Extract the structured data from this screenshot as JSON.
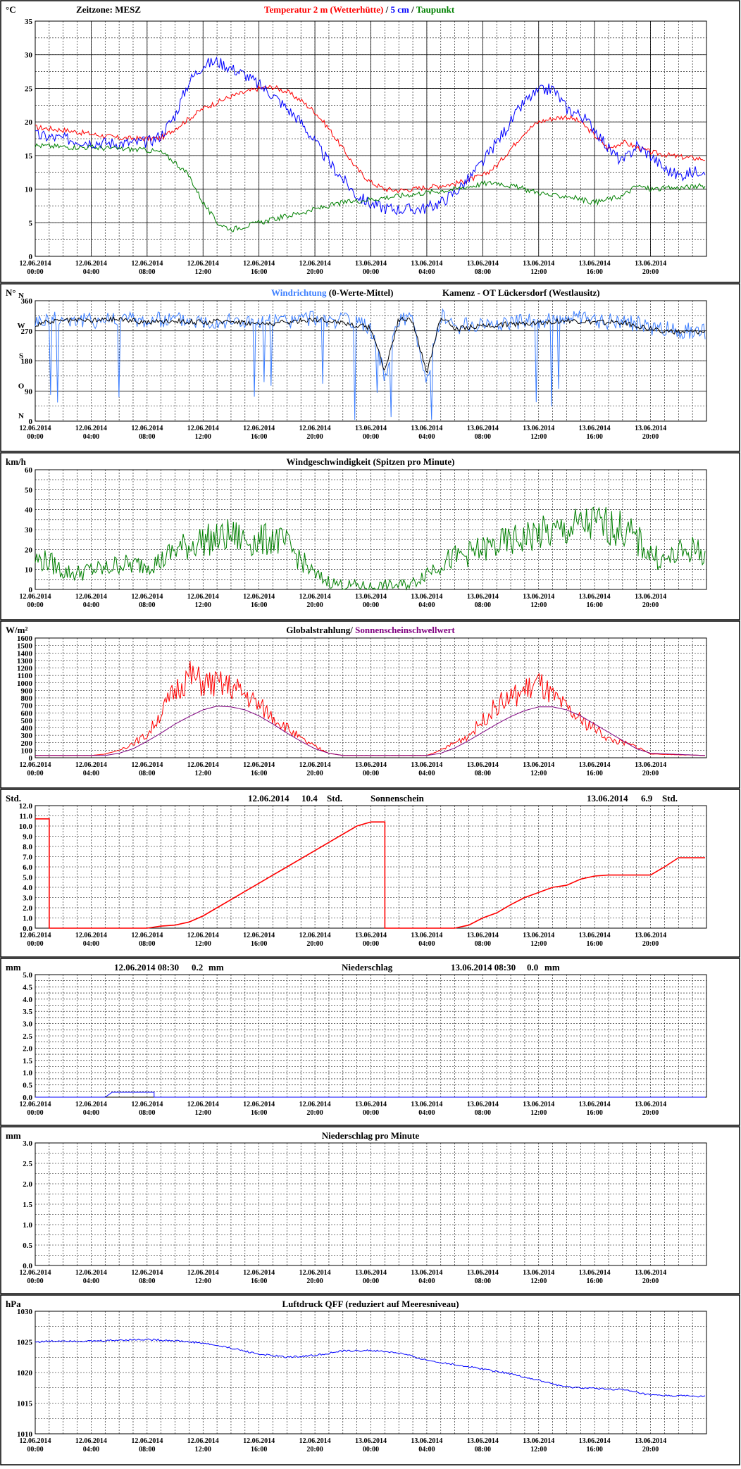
{
  "x_labels": [
    {
      "date": "12.06.2014",
      "time": "00:00"
    },
    {
      "date": "12.06.2014",
      "time": "04:00"
    },
    {
      "date": "12.06.2014",
      "time": "08:00"
    },
    {
      "date": "12.06.2014",
      "time": "12:00"
    },
    {
      "date": "12.06.2014",
      "time": "16:00"
    },
    {
      "date": "12.06.2014",
      "time": "20:00"
    },
    {
      "date": "13.06.2014",
      "time": "00:00"
    },
    {
      "date": "13.06.2014",
      "time": "04:00"
    },
    {
      "date": "13.06.2014",
      "time": "08:00"
    },
    {
      "date": "13.06.2014",
      "time": "12:00"
    },
    {
      "date": "13.06.2014",
      "time": "16:00"
    },
    {
      "date": "13.06.2014",
      "time": "20:00"
    }
  ],
  "colors": {
    "red": "#ff0000",
    "blue": "#0000ff",
    "green": "#008000",
    "black": "#000000",
    "purple": "#800080",
    "lightblue": "#3d7fff"
  },
  "chart_data": [
    {
      "id": "temp",
      "type": "line",
      "unit": "°C",
      "header": {
        "zone": "Zeitzone: MESZ",
        "t2m": "Temperatur 2 m (Wetterhütte)",
        "sep": "/",
        "t5": "5 cm",
        "sep2": "/",
        "dew": "Taupunkt"
      },
      "ylim": [
        0,
        35
      ],
      "yticks": [
        0,
        5,
        10,
        15,
        20,
        25,
        30,
        35
      ],
      "series": [
        {
          "name": "Temperatur 2 m (Wetterhütte)",
          "color": "#ff0000",
          "x": [
            0,
            2,
            4,
            6,
            8,
            9,
            10,
            11,
            12,
            14,
            16,
            17,
            18,
            19,
            20,
            21,
            22,
            23,
            24,
            25,
            26,
            27,
            28,
            30,
            32,
            33,
            34,
            35,
            36,
            37,
            38,
            39,
            40,
            41,
            42,
            44,
            46,
            47.9
          ],
          "y": [
            19.2,
            18.8,
            18.2,
            17.6,
            17.5,
            17.6,
            19,
            20.5,
            22,
            23.8,
            25,
            25.2,
            24.5,
            23.2,
            21.5,
            19,
            16,
            13,
            11,
            10,
            9.8,
            10,
            10.3,
            10.8,
            12,
            13.5,
            16,
            18.5,
            20,
            20.5,
            20.8,
            20,
            18,
            16,
            17,
            15.5,
            14.8,
            14.5
          ]
        },
        {
          "name": "5 cm",
          "color": "#0000ff",
          "x": [
            0,
            2,
            4,
            6,
            8,
            9,
            10,
            11,
            12,
            13,
            14,
            15,
            16,
            17,
            18,
            19,
            20,
            21,
            22,
            23,
            24,
            25,
            26,
            27,
            28,
            29,
            30,
            31,
            32,
            33,
            34,
            35,
            36,
            37,
            38,
            39,
            40,
            41,
            42,
            43,
            44,
            45,
            46,
            47,
            47.9
          ],
          "y": [
            18,
            17.5,
            17,
            16.8,
            17,
            18,
            21,
            26,
            28.5,
            29,
            28,
            27,
            25.5,
            24,
            22,
            20,
            17,
            14,
            11.5,
            9,
            7.8,
            7.2,
            7,
            7,
            7.2,
            8,
            9.5,
            11.5,
            14,
            17,
            20,
            23,
            24.5,
            25,
            22,
            21,
            19,
            16,
            14,
            16.5,
            15,
            13,
            12,
            12.5,
            13
          ]
        },
        {
          "name": "Taupunkt",
          "color": "#008000",
          "x": [
            0,
            2,
            4,
            6,
            8,
            9,
            10,
            11,
            12,
            13,
            14,
            15,
            16,
            18,
            20,
            22,
            24,
            26,
            28,
            30,
            32,
            33,
            34,
            35,
            36,
            37,
            38,
            39,
            40,
            41,
            42,
            43,
            44,
            46,
            47.9
          ],
          "y": [
            16.5,
            16.3,
            16.2,
            16,
            15.8,
            15.5,
            14,
            12,
            8,
            5,
            4,
            4.5,
            5,
            6,
            7,
            8,
            8.5,
            9,
            9.5,
            10,
            10.8,
            11,
            10.5,
            10,
            9.5,
            9,
            9,
            8.5,
            8,
            8.5,
            9,
            10.5,
            10,
            10.2,
            10.5
          ]
        }
      ]
    },
    {
      "id": "wdir",
      "type": "line",
      "unit": "N°",
      "header": {
        "title": "Windrichtung",
        "title2": "(0-Werte-Mittel)",
        "station": "Kamenz - OT Lückersdorf (Westlausitz)"
      },
      "ylim": [
        0,
        360
      ],
      "yticks": [
        0,
        90,
        180,
        270,
        360
      ],
      "compass": [
        "N",
        "O",
        "S",
        "W",
        "N"
      ],
      "series": [
        {
          "name": "Windrichtung",
          "color": "#3d7fff",
          "x": [
            0,
            2,
            4,
            6,
            8,
            10,
            12,
            14,
            16,
            18,
            20,
            22,
            23,
            24,
            25,
            26,
            27,
            28,
            29,
            30,
            32,
            34,
            36,
            38,
            40,
            42,
            44,
            46,
            47.9
          ],
          "y": [
            300,
            305,
            300,
            310,
            300,
            305,
            300,
            300,
            295,
            300,
            310,
            300,
            290,
            280,
            130,
            310,
            300,
            120,
            320,
            280,
            290,
            295,
            300,
            310,
            300,
            300,
            280,
            270,
            270
          ]
        },
        {
          "name": "(0-Werte-Mittel)",
          "color": "#000000",
          "x": [
            0,
            2,
            4,
            6,
            8,
            10,
            12,
            14,
            16,
            18,
            20,
            22,
            23,
            24,
            25,
            26,
            27,
            28,
            29,
            30,
            32,
            34,
            36,
            38,
            40,
            42,
            44,
            46,
            47.9
          ],
          "y": [
            290,
            300,
            300,
            305,
            295,
            300,
            295,
            300,
            290,
            295,
            305,
            295,
            285,
            280,
            150,
            305,
            300,
            140,
            315,
            275,
            285,
            290,
            295,
            300,
            295,
            295,
            275,
            265,
            265
          ]
        }
      ]
    },
    {
      "id": "wspeed",
      "type": "line",
      "unit": "km/h",
      "header": {
        "title": "Windgeschwindigkeit (Spitzen pro Minute)"
      },
      "ylim": [
        0,
        60
      ],
      "yticks": [
        0,
        10,
        20,
        30,
        40,
        50,
        60
      ],
      "series": [
        {
          "name": "Windgeschwindigkeit (Spitzen pro Minute)",
          "color": "#008000",
          "x": [
            0,
            1,
            2,
            3,
            4,
            5,
            6,
            7,
            8,
            9,
            10,
            11,
            12,
            13,
            14,
            15,
            16,
            17,
            18,
            19,
            20,
            21,
            22,
            23,
            24,
            25,
            26,
            27,
            28,
            29,
            30,
            31,
            32,
            33,
            34,
            35,
            36,
            37,
            38,
            39,
            40,
            41,
            42,
            43,
            44,
            45,
            46,
            47,
            47.9
          ],
          "y": [
            15,
            14,
            9,
            8,
            10,
            10,
            13,
            12,
            13,
            14,
            20,
            22,
            25,
            25,
            27,
            25,
            24,
            26,
            22,
            15,
            7,
            4,
            2,
            2,
            1,
            2,
            2,
            3,
            9,
            13,
            16,
            18,
            20,
            22,
            24,
            26,
            28,
            28,
            30,
            32,
            33,
            32,
            30,
            25,
            18,
            14,
            18,
            20,
            18
          ]
        }
      ]
    },
    {
      "id": "rad",
      "type": "line",
      "unit": "W/m²",
      "header": {
        "title": "Globalstrahlung/",
        "title2": "Sonnenscheinschwellwert"
      },
      "ylim": [
        0,
        1600
      ],
      "yticks": [
        0,
        100,
        200,
        300,
        400,
        500,
        600,
        700,
        800,
        900,
        1000,
        1100,
        1200,
        1300,
        1400,
        1500,
        1600
      ],
      "series": [
        {
          "name": "Globalstrahlung",
          "color": "#ff0000",
          "x": [
            0,
            4,
            5,
            6,
            7,
            8,
            9,
            10,
            11,
            12,
            13,
            14,
            15,
            16,
            17,
            18,
            19,
            20,
            21,
            22,
            24,
            28,
            29,
            30,
            31,
            32,
            33,
            34,
            35,
            36,
            37,
            38,
            39,
            40,
            41,
            42,
            43,
            44,
            47.9
          ],
          "y": [
            30,
            30,
            50,
            100,
            200,
            300,
            600,
            900,
            1100,
            1000,
            980,
            950,
            850,
            700,
            550,
            400,
            250,
            150,
            60,
            30,
            30,
            30,
            100,
            200,
            300,
            500,
            700,
            800,
            900,
            1000,
            800,
            650,
            500,
            400,
            250,
            200,
            150,
            50,
            30
          ]
        },
        {
          "name": "Sonnenscheinschwellwert",
          "color": "#800080",
          "x": [
            0,
            5,
            6,
            7,
            8,
            9,
            10,
            11,
            12,
            13,
            14,
            15,
            16,
            17,
            18,
            19,
            20,
            21,
            22,
            24,
            28,
            29,
            30,
            31,
            32,
            33,
            34,
            35,
            36,
            37,
            38,
            39,
            40,
            41,
            42,
            43,
            44,
            47.9
          ],
          "y": [
            30,
            30,
            60,
            120,
            220,
            330,
            450,
            550,
            640,
            690,
            680,
            640,
            560,
            450,
            330,
            220,
            120,
            60,
            30,
            30,
            30,
            60,
            130,
            230,
            340,
            450,
            550,
            630,
            680,
            680,
            640,
            560,
            450,
            340,
            230,
            120,
            60,
            30
          ]
        }
      ]
    },
    {
      "id": "sun",
      "type": "line",
      "unit": "Std.",
      "header": {
        "d1": "12.06.2014",
        "v1": "10.4",
        "u1": "Std.",
        "title": "Sonnenschein",
        "d2": "13.06.2014",
        "v2": "6.9",
        "u2": "Std."
      },
      "ylim": [
        0,
        12
      ],
      "yticks": [
        0,
        1,
        2,
        3,
        4,
        5,
        6,
        7,
        8,
        9,
        10,
        11,
        12
      ],
      "series": [
        {
          "name": "Sonnenschein",
          "color": "#ff0000",
          "x": [
            0,
            1,
            1,
            6,
            7,
            8,
            9,
            10,
            11,
            12,
            13,
            14,
            15,
            16,
            17,
            18,
            19,
            20,
            21,
            22,
            23,
            24,
            25,
            25,
            28,
            29,
            30,
            31,
            32,
            33,
            34,
            35,
            36,
            37,
            38,
            39,
            40,
            41,
            42,
            43,
            44,
            45,
            46,
            47,
            47.9
          ],
          "y": [
            10.7,
            10.7,
            0,
            0,
            0,
            0,
            0.2,
            0.3,
            0.6,
            1.2,
            2,
            2.8,
            3.6,
            4.4,
            5.2,
            6,
            6.8,
            7.6,
            8.4,
            9.2,
            10,
            10.4,
            10.4,
            0,
            0,
            0,
            0,
            0.3,
            1,
            1.5,
            2.3,
            3,
            3.5,
            4,
            4.2,
            4.8,
            5.1,
            5.2,
            5.2,
            5.2,
            5.2,
            6,
            6.9,
            6.9,
            6.9
          ]
        }
      ]
    },
    {
      "id": "precip",
      "type": "line",
      "unit": "mm",
      "header": {
        "d1": "12.06.2014 08:30",
        "v1": "0.2",
        "u1": "mm",
        "title": "Niederschlag",
        "d2": "13.06.2014 08:30",
        "v2": "0.0",
        "u2": "mm"
      },
      "ylim": [
        0,
        5
      ],
      "yticks": [
        0,
        0.5,
        1,
        1.5,
        2,
        2.5,
        3,
        3.5,
        4,
        4.5,
        5
      ],
      "series": [
        {
          "name": "Niederschlag",
          "color": "#0000ff",
          "x": [
            0,
            5,
            5.5,
            8.5,
            8.5,
            47.9
          ],
          "y": [
            0,
            0,
            0.2,
            0.2,
            0,
            0
          ]
        }
      ]
    },
    {
      "id": "precipmin",
      "type": "line",
      "unit": "mm",
      "header": {
        "title": "Niederschlag pro Minute"
      },
      "ylim": [
        0,
        3
      ],
      "yticks": [
        0,
        0.5,
        1,
        1.5,
        2,
        2.5,
        3
      ],
      "series": []
    },
    {
      "id": "press",
      "type": "line",
      "unit": "hPa",
      "header": {
        "title": "Luftdruck QFF (reduziert auf Meeresniveau)"
      },
      "ylim": [
        1010,
        1030
      ],
      "yticks": [
        1010,
        1015,
        1020,
        1025,
        1030
      ],
      "series": [
        {
          "name": "Luftdruck QFF",
          "color": "#0000ff",
          "x": [
            0,
            2,
            4,
            6,
            8,
            10,
            12,
            14,
            16,
            18,
            20,
            22,
            24,
            26,
            28,
            30,
            32,
            34,
            36,
            38,
            40,
            42,
            44,
            46,
            47.9
          ],
          "y": [
            1025,
            1025.2,
            1025.1,
            1025.3,
            1025.4,
            1025.2,
            1024.8,
            1024,
            1023,
            1022.5,
            1022.8,
            1023.5,
            1023.6,
            1023.2,
            1022,
            1021.3,
            1020.6,
            1019.8,
            1018.7,
            1017.6,
            1017.4,
            1017.2,
            1016.3,
            1016.2,
            1016.1
          ]
        }
      ]
    }
  ]
}
